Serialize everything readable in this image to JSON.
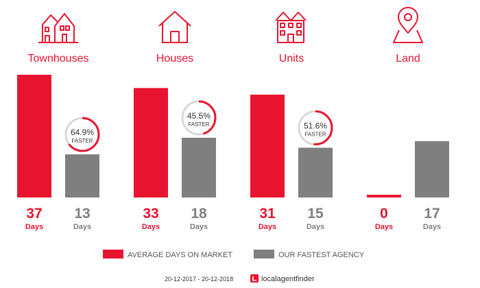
{
  "chart_data": {
    "type": "bar",
    "categories": [
      "Townhouses",
      "Houses",
      "Units",
      "Land"
    ],
    "icons": [
      "townhouse-icon",
      "house-icon",
      "units-icon",
      "land-pin-icon"
    ],
    "series": [
      {
        "name": "AVERAGE DAYS ON MARKET",
        "color": "#e8142f",
        "values": [
          37,
          33,
          31,
          0
        ]
      },
      {
        "name": "OUR FASTEST AGENCY",
        "color": "#7f7f7f",
        "values": [
          13,
          18,
          15,
          17
        ]
      }
    ],
    "value_unit": "Days",
    "badges": [
      {
        "percent": "64.9%",
        "label": "FASTER"
      },
      {
        "percent": "45.5%",
        "label": "FASTER"
      },
      {
        "percent": "51.6%",
        "label": "FASTER"
      },
      null
    ]
  },
  "footer": {
    "date_range": "20-12-2017 - 20-12-2018",
    "brand": "localagentfinder"
  },
  "colors": {
    "red": "#e8142f",
    "grey": "#7f7f7f"
  }
}
